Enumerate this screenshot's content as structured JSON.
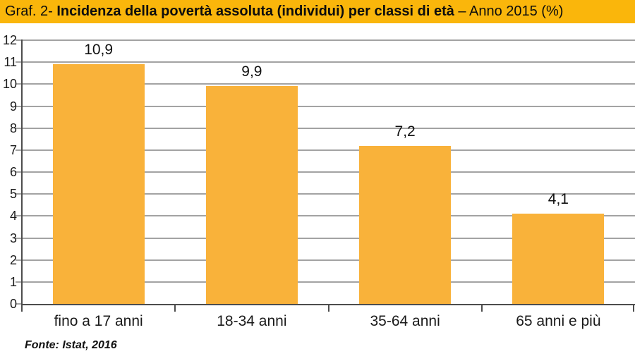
{
  "header": {
    "title_prefix": "Graf. 2- ",
    "title_main": "Incidenza della povertà assoluta (individui) per classi di età",
    "title_suffix": " – Anno 2015 (%)",
    "bg_color": "#FAB60B",
    "text_color": "#0D0D0D"
  },
  "chart_data": {
    "type": "bar",
    "title": "Graf. 2- Incidenza della povertà assoluta (individui) per classi di età – Anno 2015 (%)",
    "categories": [
      "fino a 17 anni",
      "18-34 anni",
      "35-64 anni",
      "65 anni e più"
    ],
    "values": [
      10.9,
      9.9,
      7.2,
      4.1
    ],
    "value_labels": [
      "10,9",
      "9,9",
      "7,2",
      "4,1"
    ],
    "xlabel": "",
    "ylabel": "",
    "ylim": [
      0,
      12
    ],
    "yticks": [
      "0",
      "1",
      "2",
      "3",
      "4",
      "5",
      "6",
      "7",
      "8",
      "9",
      "10",
      "11",
      "12"
    ],
    "grid": true,
    "legend": "none",
    "bar_color": "#F9B23A",
    "gridline_color": "#A3A3A3",
    "axis_color": "#4D4D4D"
  },
  "footer": {
    "source": "Fonte: Istat, 2016"
  }
}
